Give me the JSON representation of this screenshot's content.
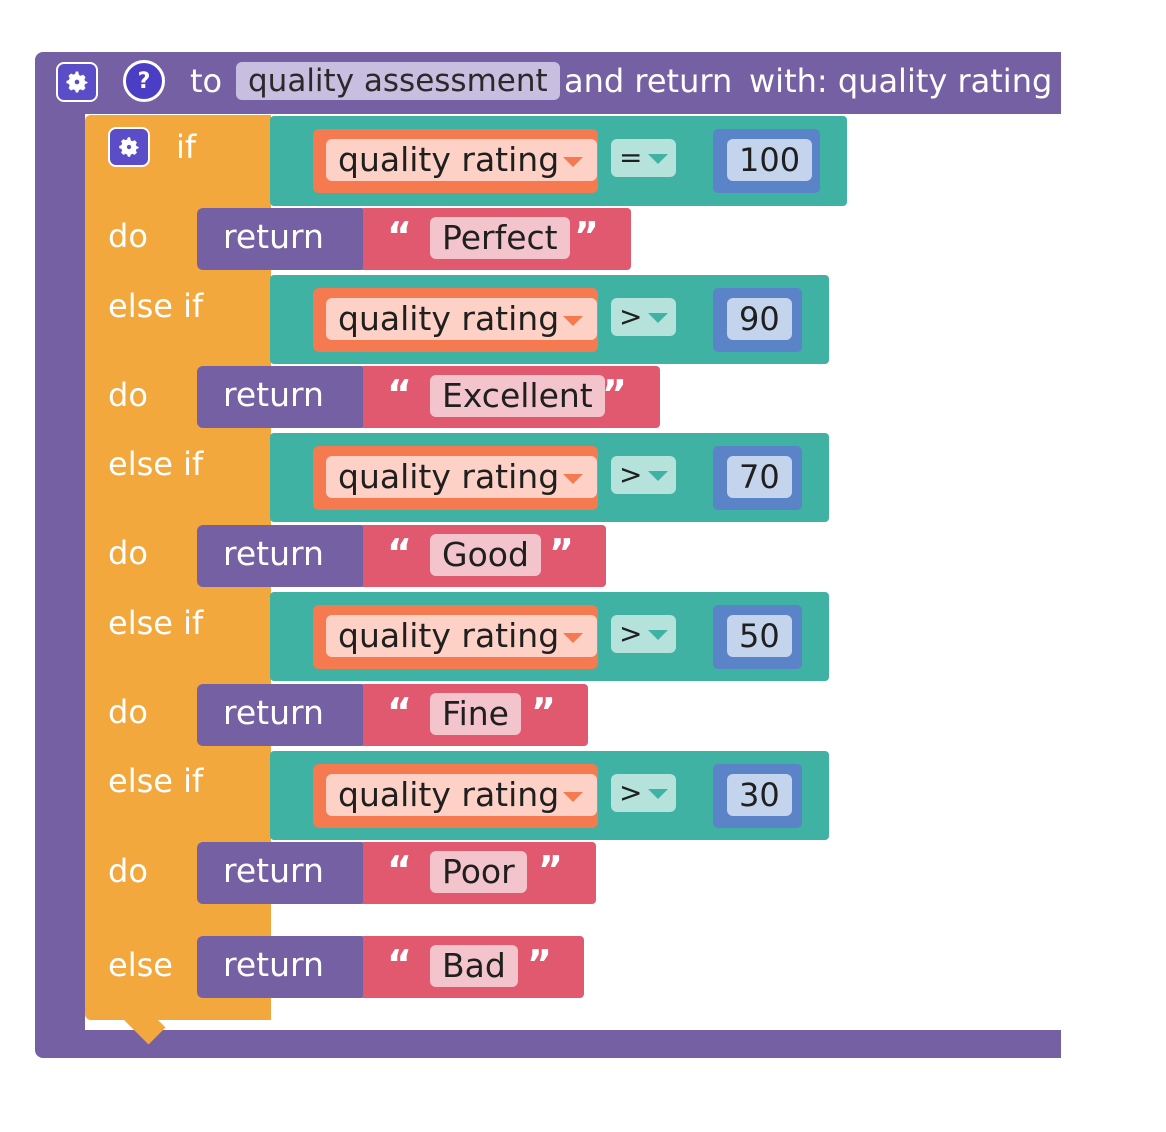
{
  "procedure": {
    "to_label": "to",
    "name": "quality assessment",
    "and_return_label": "and return",
    "with_label": "with: quality rating"
  },
  "if_block": {
    "if_label": "if",
    "do_label": "do",
    "else_if_label": "else if",
    "else_label": "else",
    "return_label": "return",
    "open_quote": "“",
    "close_quote": "”",
    "branches": [
      {
        "variable": "quality rating",
        "operator": "=",
        "value": "100",
        "result": "Perfect"
      },
      {
        "variable": "quality rating",
        "operator": ">",
        "value": "90",
        "result": "Excellent"
      },
      {
        "variable": "quality rating",
        "operator": ">",
        "value": "70",
        "result": "Good"
      },
      {
        "variable": "quality rating",
        "operator": ">",
        "value": "50",
        "result": "Fine"
      },
      {
        "variable": "quality rating",
        "operator": ">",
        "value": "30",
        "result": "Poor"
      }
    ],
    "else_result": "Bad"
  },
  "colors": {
    "procedure": "#7560a4",
    "control": "#f2a83d",
    "logic": "#3fb2a4",
    "variable": "#f57a50",
    "math": "#5b83c7",
    "text": "#e0596e"
  },
  "icons": {
    "procedure_settings": "gear-icon",
    "procedure_help": "help-icon",
    "if_settings": "gear-icon"
  }
}
